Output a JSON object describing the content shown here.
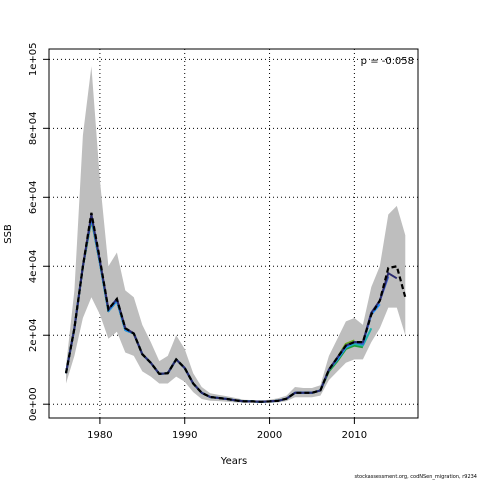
{
  "chart_data": {
    "type": "line",
    "xlabel": "Years",
    "ylabel": "SSB",
    "xlim": [
      1974.0,
      2017.5
    ],
    "ylim": [
      -4000,
      103000
    ],
    "x_ticks": [
      1980,
      1990,
      2000,
      2010
    ],
    "x_tick_labels": [
      "1980",
      "1990",
      "2000",
      "2010"
    ],
    "y_ticks": [
      0,
      20000,
      40000,
      60000,
      80000,
      100000
    ],
    "y_tick_labels": [
      "0e+00",
      "2e+04",
      "4e+04",
      "6e+04",
      "8e+04",
      "1e+05"
    ],
    "grid": true,
    "annotation": "ρ = -0.058",
    "credit": "stockassessment.org, codNSen_migration, r9234",
    "confidence_band": {
      "x": [
        1976,
        1977,
        1978,
        1979,
        1980,
        1981,
        1982,
        1983,
        1984,
        1985,
        1986,
        1987,
        1988,
        1989,
        1990,
        1991,
        1992,
        1993,
        1994,
        1995,
        1996,
        1997,
        1998,
        1999,
        2000,
        2001,
        2002,
        2003,
        2004,
        2005,
        2006,
        2007,
        2008,
        2009,
        2010,
        2011,
        2012,
        2013,
        2014,
        2015,
        2016
      ],
      "lower": [
        6000,
        14000,
        25000,
        31000,
        26000,
        19000,
        21000,
        15000,
        14000,
        9500,
        8000,
        6000,
        6000,
        8000,
        6500,
        3500,
        1500,
        1000,
        900,
        700,
        500,
        400,
        400,
        400,
        400,
        500,
        900,
        2000,
        2000,
        2000,
        2500,
        7000,
        9500,
        12000,
        13000,
        13000,
        18000,
        22000,
        28000,
        28000,
        20000
      ],
      "upper": [
        11000,
        33000,
        78000,
        98000,
        65000,
        40000,
        44000,
        33000,
        31000,
        23000,
        18000,
        12500,
        14000,
        20000,
        16000,
        9000,
        5000,
        3200,
        2700,
        2300,
        1800,
        1300,
        1200,
        1100,
        1300,
        1700,
        2500,
        5000,
        4700,
        4700,
        5500,
        14000,
        19000,
        24000,
        25000,
        23000,
        34000,
        40000,
        55000,
        57500,
        49000
      ]
    },
    "series": [
      {
        "color": "#000000",
        "dashed": true,
        "x": [
          1976,
          1977,
          1978,
          1979,
          1980,
          1981,
          1982,
          1983,
          1984,
          1985,
          1986,
          1987,
          1988,
          1989,
          1990,
          1991,
          1992,
          1993,
          1994,
          1995,
          1996,
          1997,
          1998,
          1999,
          2000,
          2001,
          2002,
          2003,
          2004,
          2005,
          2006,
          2007,
          2008,
          2009,
          2010,
          2011,
          2012,
          2013,
          2014,
          2015,
          2016
        ],
        "values": [
          9000,
          22000,
          40000,
          55500,
          42000,
          27500,
          30500,
          22000,
          20500,
          14500,
          12000,
          8800,
          9000,
          13000,
          10500,
          6000,
          3300,
          2100,
          1800,
          1500,
          1100,
          800,
          800,
          700,
          800,
          1000,
          1600,
          3300,
          3300,
          3300,
          4000,
          10000,
          13500,
          17000,
          18000,
          18000,
          26000,
          30000,
          39500,
          40000,
          31000
        ]
      },
      {
        "color": "#2a2a6e",
        "x": [
          1976,
          1977,
          1978,
          1979,
          1980,
          1981,
          1982,
          1983,
          1984,
          1985,
          1986,
          1987,
          1988,
          1989,
          1990,
          1991,
          1992,
          1993,
          1994,
          1995,
          1996,
          1997,
          1998,
          1999,
          2000,
          2001,
          2002,
          2003,
          2004,
          2005,
          2006,
          2007,
          2008,
          2009,
          2010,
          2011,
          2012,
          2013,
          2014,
          2015
        ],
        "values": [
          9000,
          22000,
          40000,
          55000,
          41500,
          27500,
          30500,
          22000,
          20500,
          14500,
          12000,
          8800,
          9000,
          13000,
          10500,
          6000,
          3300,
          2100,
          1800,
          1500,
          1100,
          800,
          800,
          700,
          800,
          1000,
          1600,
          3300,
          3300,
          3300,
          4000,
          10000,
          13500,
          17000,
          18000,
          18000,
          26500,
          30000,
          38000,
          36500
        ]
      },
      {
        "color": "#3a5fcd",
        "x": [
          1976,
          1977,
          1978,
          1979,
          1980,
          1981,
          1982,
          1983,
          1984,
          1985,
          1986,
          1987,
          1988,
          1989,
          1990,
          1991,
          1992,
          1993,
          1994,
          1995,
          1996,
          1997,
          1998,
          1999,
          2000,
          2001,
          2002,
          2003,
          2004,
          2005,
          2006,
          2007,
          2008,
          2009,
          2010,
          2011,
          2012,
          2013,
          2014
        ],
        "values": [
          9000,
          22000,
          40000,
          54500,
          41500,
          27500,
          30500,
          22000,
          20500,
          14500,
          12000,
          8800,
          9000,
          13000,
          10500,
          6000,
          3300,
          2100,
          1800,
          1500,
          1100,
          800,
          800,
          700,
          800,
          1000,
          1600,
          3300,
          3300,
          3300,
          4000,
          10000,
          13500,
          17000,
          18000,
          17500,
          26500,
          30000,
          37000
        ]
      },
      {
        "color": "#1e90ff",
        "x": [
          1976,
          1977,
          1978,
          1979,
          1980,
          1981,
          1982,
          1983,
          1984,
          1985,
          1986,
          1987,
          1988,
          1989,
          1990,
          1991,
          1992,
          1993,
          1994,
          1995,
          1996,
          1997,
          1998,
          1999,
          2000,
          2001,
          2002,
          2003,
          2004,
          2005,
          2006,
          2007,
          2008,
          2009,
          2010,
          2011,
          2012,
          2013
        ],
        "values": [
          9000,
          22000,
          40000,
          54000,
          41000,
          27000,
          30000,
          21500,
          20500,
          14500,
          12000,
          8800,
          9000,
          13000,
          10500,
          6000,
          3300,
          2100,
          1800,
          1500,
          1100,
          800,
          800,
          700,
          800,
          1000,
          1600,
          3300,
          3300,
          3300,
          4000,
          10000,
          13000,
          16500,
          18000,
          17500,
          26000,
          29000
        ]
      },
      {
        "color": "#20b2aa",
        "x": [
          1976,
          1977,
          1978,
          1979,
          1980,
          1981,
          1982,
          1983,
          1984,
          1985,
          1986,
          1987,
          1988,
          1989,
          1990,
          1991,
          1992,
          1993,
          1994,
          1995,
          1996,
          1997,
          1998,
          1999,
          2000,
          2001,
          2002,
          2003,
          2004,
          2005,
          2006,
          2007,
          2008,
          2009,
          2010,
          2011,
          2012
        ],
        "values": [
          9000,
          22000,
          40000,
          54000,
          41000,
          27000,
          30000,
          21500,
          20500,
          14500,
          12000,
          8800,
          9000,
          13000,
          10500,
          6000,
          3300,
          2100,
          1800,
          1500,
          1100,
          800,
          800,
          700,
          800,
          1000,
          1600,
          3300,
          3300,
          3300,
          4000,
          10000,
          13000,
          16500,
          17500,
          17000,
          22000
        ]
      },
      {
        "color": "#1f9e3a",
        "x": [
          1976,
          1977,
          1978,
          1979,
          1980,
          1981,
          1982,
          1983,
          1984,
          1985,
          1986,
          1987,
          1988,
          1989,
          1990,
          1991,
          1992,
          1993,
          1994,
          1995,
          1996,
          1997,
          1998,
          1999,
          2000,
          2001,
          2002,
          2003,
          2004,
          2005,
          2006,
          2007,
          2008,
          2009,
          2010,
          2011
        ],
        "values": [
          9000,
          22000,
          40000,
          54000,
          41000,
          27000,
          30000,
          21500,
          20500,
          14500,
          12000,
          8800,
          9000,
          13000,
          10500,
          6000,
          3300,
          2100,
          1800,
          1500,
          1100,
          800,
          800,
          700,
          800,
          1000,
          1600,
          3300,
          3300,
          3300,
          4000,
          9500,
          12500,
          16000,
          17000,
          16500
        ]
      },
      {
        "color": "#6aaa1e",
        "x": [
          1976,
          1977,
          1978,
          1979,
          1980,
          1981,
          1982,
          1983,
          1984,
          1985,
          1986,
          1987,
          1988,
          1989,
          1990,
          1991,
          1992,
          1993,
          1994,
          1995,
          1996,
          1997,
          1998,
          1999,
          2000,
          2001,
          2002,
          2003,
          2004,
          2005,
          2006,
          2007,
          2008,
          2009,
          2010
        ],
        "values": [
          9000,
          22000,
          40000,
          53500,
          41000,
          27000,
          30000,
          21500,
          20500,
          14500,
          12000,
          8800,
          9000,
          13000,
          10500,
          6000,
          3300,
          2100,
          1800,
          1500,
          1100,
          800,
          800,
          700,
          800,
          1000,
          1600,
          3300,
          3300,
          3300,
          4000,
          10000,
          13500,
          17500,
          18500
        ]
      },
      {
        "color": "#9aa52a",
        "x": [
          1976,
          1977,
          1978,
          1979,
          1980,
          1981,
          1982,
          1983,
          1984,
          1985,
          1986,
          1987,
          1988,
          1989,
          1990,
          1991,
          1992,
          1993,
          1994,
          1995,
          1996,
          1997,
          1998,
          1999,
          2000,
          2001,
          2002,
          2003,
          2004,
          2005,
          2006,
          2007,
          2008,
          2009
        ],
        "values": [
          9000,
          22000,
          40000,
          53500,
          41000,
          27000,
          30000,
          21500,
          20500,
          14500,
          12000,
          8800,
          9000,
          13000,
          10500,
          6000,
          3300,
          2100,
          1800,
          1500,
          1100,
          800,
          800,
          700,
          800,
          1000,
          1600,
          3300,
          3300,
          3300,
          4000,
          10000,
          13500,
          17500
        ]
      }
    ]
  }
}
